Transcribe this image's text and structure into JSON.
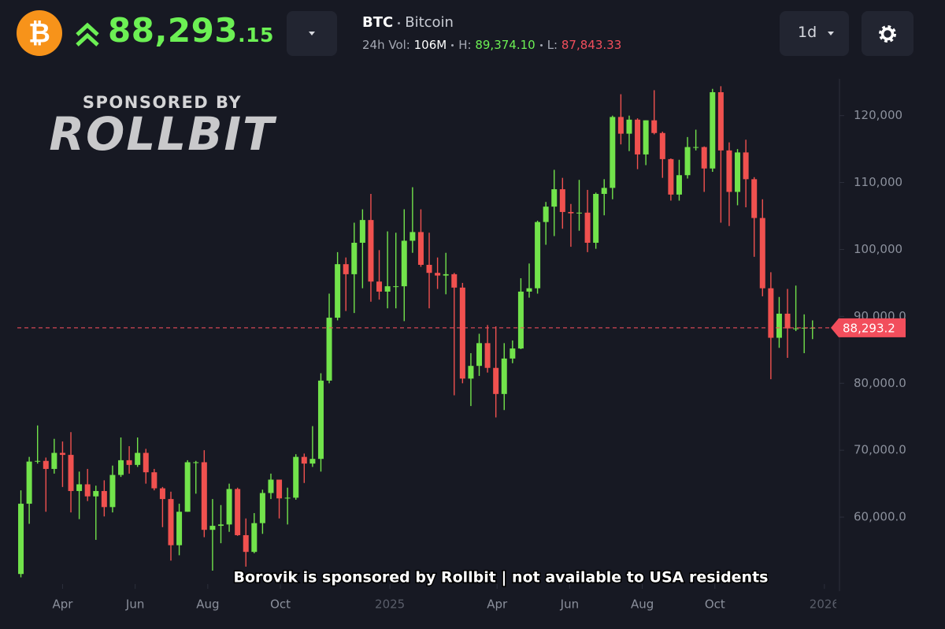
{
  "header": {
    "price_main": "88,293",
    "price_decimals": ".15",
    "symbol": "BTC",
    "name": "Bitcoin",
    "vol_label": "24h Vol:",
    "vol": "106M",
    "high_label": "H:",
    "high": "89,374.10",
    "low_label": "L:",
    "low": "87,843.33",
    "interval": "1d",
    "logo": "₿"
  },
  "sponsor": {
    "kicker": "SPONSORED BY",
    "brand": "ROLLBIT",
    "notice": "Borovik is sponsored by Rollbit | not available to USA residents"
  },
  "chart_data": {
    "type": "candlestick",
    "x": [
      "2024-02-26",
      "2024-03-04",
      "2024-03-11",
      "2024-03-18",
      "2024-03-25",
      "2024-04-01",
      "2024-04-08",
      "2024-04-15",
      "2024-04-22",
      "2024-04-29",
      "2024-05-06",
      "2024-05-13",
      "2024-05-20",
      "2024-05-27",
      "2024-06-03",
      "2024-06-10",
      "2024-06-17",
      "2024-06-24",
      "2024-07-01",
      "2024-07-08",
      "2024-07-15",
      "2024-07-22",
      "2024-07-29",
      "2024-08-05",
      "2024-08-12",
      "2024-08-19",
      "2024-08-26",
      "2024-09-02",
      "2024-09-09",
      "2024-09-16",
      "2024-09-23",
      "2024-09-30",
      "2024-10-07",
      "2024-10-14",
      "2024-10-21",
      "2024-10-28",
      "2024-11-04",
      "2024-11-11",
      "2024-11-18",
      "2024-11-25",
      "2024-12-02",
      "2024-12-09",
      "2024-12-16",
      "2024-12-23",
      "2024-12-30",
      "2025-01-06",
      "2025-01-13",
      "2025-01-20",
      "2025-01-27",
      "2025-02-03",
      "2025-02-10",
      "2025-02-17",
      "2025-02-24",
      "2025-03-03",
      "2025-03-10",
      "2025-03-17",
      "2025-03-24",
      "2025-03-31",
      "2025-04-07",
      "2025-04-14",
      "2025-04-21",
      "2025-04-28",
      "2025-05-05",
      "2025-05-12",
      "2025-05-19",
      "2025-05-26",
      "2025-06-02",
      "2025-06-09",
      "2025-06-16",
      "2025-06-23",
      "2025-06-30",
      "2025-07-07",
      "2025-07-14",
      "2025-07-21",
      "2025-07-28",
      "2025-08-04",
      "2025-08-11",
      "2025-08-18",
      "2025-08-25",
      "2025-09-01",
      "2025-09-08",
      "2025-09-15",
      "2025-09-22",
      "2025-09-29",
      "2025-10-06",
      "2025-10-13",
      "2025-10-20",
      "2025-10-27",
      "2025-11-03",
      "2025-11-10",
      "2025-11-17",
      "2025-11-24",
      "2025-12-01",
      "2025-12-08",
      "2025-12-15",
      "2025-12-22"
    ],
    "open": [
      51500,
      62000,
      68300,
      68400,
      67200,
      69600,
      69300,
      63900,
      64900,
      63100,
      63900,
      61500,
      66300,
      68500,
      67800,
      69600,
      66700,
      64300,
      62700,
      55800,
      60800,
      68200,
      68200,
      58100,
      58700,
      58900,
      64200,
      57300,
      54800,
      59100,
      63600,
      65600,
      62800,
      62900,
      69000,
      68000,
      68700,
      80400,
      89800,
      97800,
      96300,
      101000,
      104400,
      95200,
      93700,
      94500,
      94500,
      101300,
      102600,
      97700,
      96500,
      96100,
      96300,
      94300,
      80700,
      82600,
      86000,
      82300,
      78400,
      83700,
      85200,
      93700,
      94200,
      104100,
      106400,
      109000,
      105600,
      105400,
      105500,
      101000,
      108300,
      109200,
      119800,
      117300,
      119400,
      114200,
      119300,
      117400,
      113500,
      108200,
      111100,
      115300,
      115300,
      112100,
      123500,
      114800,
      108600,
      114500,
      110500,
      104700,
      94200,
      86800,
      90400,
      88200,
      88200,
      88300
    ],
    "high": [
      64000,
      69000,
      73700,
      68900,
      71700,
      71300,
      72700,
      66800,
      67200,
      64700,
      65500,
      67700,
      71900,
      70600,
      71900,
      70200,
      67200,
      64500,
      63800,
      62000,
      68500,
      68400,
      70000,
      62700,
      61800,
      65000,
      64400,
      59800,
      60600,
      64100,
      66500,
      65600,
      64400,
      69400,
      69500,
      73600,
      81500,
      93400,
      99600,
      98800,
      104000,
      106000,
      108300,
      99900,
      102700,
      102500,
      106000,
      109300,
      106000,
      102500,
      98800,
      99500,
      96500,
      95000,
      84500,
      87400,
      88700,
      88500,
      86000,
      86400,
      95700,
      97900,
      104300,
      107100,
      111900,
      110700,
      106800,
      110400,
      108900,
      108500,
      110500,
      120000,
      123200,
      120000,
      119600,
      119300,
      123800,
      117600,
      113600,
      113400,
      116800,
      117900,
      115400,
      124000,
      124400,
      116000,
      115000,
      116400,
      110800,
      107500,
      96600,
      92900,
      94100,
      94600,
      90300,
      89400
    ],
    "low": [
      51000,
      59000,
      68000,
      60800,
      66500,
      64500,
      60700,
      59700,
      62400,
      56600,
      60100,
      60700,
      66000,
      66500,
      67500,
      65000,
      64000,
      58500,
      53500,
      54300,
      60800,
      63500,
      57000,
      52000,
      56100,
      57800,
      57200,
      52600,
      54600,
      57500,
      62700,
      59800,
      58900,
      62600,
      65100,
      67500,
      66800,
      80000,
      89400,
      90800,
      90500,
      94200,
      92200,
      92500,
      91200,
      91200,
      89300,
      99500,
      97400,
      91200,
      94100,
      93300,
      78200,
      80000,
      76600,
      81100,
      81600,
      74900,
      76000,
      83000,
      85100,
      92800,
      93400,
      100700,
      102000,
      103100,
      100400,
      102800,
      99600,
      100100,
      105100,
      107500,
      115700,
      114700,
      112000,
      112600,
      117200,
      110700,
      107300,
      107300,
      110600,
      114800,
      108600,
      111600,
      104000,
      103500,
      106600,
      106300,
      98900,
      93000,
      80600,
      85300,
      83800,
      87800,
      84500,
      86600
    ],
    "close": [
      62000,
      68300,
      68400,
      67200,
      69600,
      69300,
      63900,
      64900,
      63100,
      63900,
      61500,
      66300,
      68500,
      67800,
      69600,
      66700,
      64300,
      62700,
      55800,
      60800,
      68200,
      68200,
      58100,
      58700,
      58900,
      64200,
      57300,
      54800,
      59100,
      63600,
      65600,
      62800,
      62900,
      69000,
      68000,
      68700,
      80400,
      89800,
      97800,
      96300,
      101000,
      104400,
      95200,
      93700,
      94500,
      94500,
      101300,
      102600,
      97700,
      96500,
      96100,
      96300,
      94300,
      80700,
      82600,
      86000,
      82300,
      78400,
      83700,
      85200,
      93700,
      94200,
      104100,
      106400,
      109000,
      105600,
      105400,
      105500,
      101000,
      108300,
      109200,
      119800,
      117300,
      119400,
      114200,
      119300,
      117400,
      113500,
      108200,
      111100,
      115300,
      115300,
      112100,
      123500,
      114800,
      108600,
      114500,
      110500,
      104700,
      94200,
      86800,
      90400,
      88200,
      88200,
      88300,
      88300
    ],
    "up_color": "#72e34b",
    "down_color": "#f0514f",
    "xlim": [
      "2024-02-23",
      "2026-01-11"
    ],
    "xticks": [
      {
        "value": "2024-04-01",
        "label": "Apr"
      },
      {
        "value": "2024-06-01",
        "label": "Jun"
      },
      {
        "value": "2024-08-01",
        "label": "Aug"
      },
      {
        "value": "2024-10-01",
        "label": "Oct"
      },
      {
        "value": "2025-01-01",
        "label": "2025"
      },
      {
        "value": "2025-04-01",
        "label": "Apr"
      },
      {
        "value": "2025-06-01",
        "label": "Jun"
      },
      {
        "value": "2025-08-01",
        "label": "Aug"
      },
      {
        "value": "2025-10-01",
        "label": "Oct"
      },
      {
        "value": "2026-01-01",
        "label": "2026"
      }
    ],
    "ylim": [
      50700,
      125500
    ],
    "yticks": [
      {
        "value": 60000,
        "label": "60,000.0"
      },
      {
        "value": 70000,
        "label": "70,000.0"
      },
      {
        "value": 80000,
        "label": "80,000.0"
      },
      {
        "value": 90000,
        "label": "90,000.0"
      },
      {
        "value": 100000,
        "label": "100,000"
      },
      {
        "value": 110000,
        "label": "110,000"
      },
      {
        "value": 120000,
        "label": "120,000"
      }
    ],
    "last_price": {
      "value": 88293.2,
      "label": "88,293.2"
    },
    "last_price_color": "#f24e5c"
  }
}
